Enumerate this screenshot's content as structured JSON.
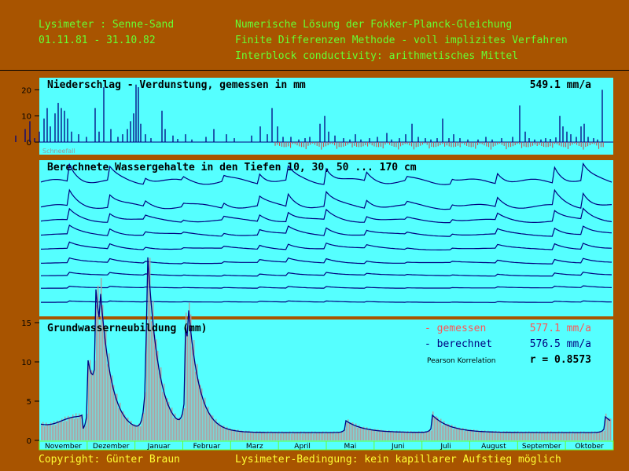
{
  "header": {
    "left_line1": "Lysimeter : Senne-Sand",
    "left_line2": "01.11.81 - 31.10.82",
    "right_line1": "Numerische Lösung der Fokker-Planck-Gleichung",
    "right_line2": "Finite Differenzen Methode - voll implizites Verfahren",
    "right_line3": "Interblock conductivity: arithmetisches Mittel"
  },
  "footer": {
    "copyright": "Copyright: Günter Braun",
    "condition": "Lysimeter-Bedingung: kein kapillarer Aufstieg möglich"
  },
  "colors": {
    "background": "#a85400",
    "plot_bg": "#55ffff",
    "header_text": "#66ff33",
    "footer_text": "#ffff33",
    "measured": "#ff5555",
    "computed": "#000080",
    "line": "#000080"
  },
  "chart_data": [
    {
      "type": "bar",
      "title": "Niederschlag - Verdunstung, gemessen in mm",
      "total_label": "549.1 mm/a",
      "note": "Schneefall",
      "yticks": [
        0,
        10,
        20
      ],
      "ylim": [
        -3,
        25
      ],
      "spikes": [
        [
          20,
          2.5
        ],
        [
          32,
          5
        ],
        [
          38,
          8
        ],
        [
          44,
          1.5
        ],
        [
          50,
          4
        ],
        [
          56,
          9
        ],
        [
          60,
          13
        ],
        [
          64,
          6
        ],
        [
          70,
          11
        ],
        [
          74,
          15
        ],
        [
          78,
          13
        ],
        [
          82,
          12
        ],
        [
          86,
          9
        ],
        [
          91,
          4
        ],
        [
          100,
          3
        ],
        [
          110,
          2
        ],
        [
          121,
          13
        ],
        [
          126,
          4
        ],
        [
          132,
          21
        ],
        [
          141,
          5
        ],
        [
          150,
          2
        ],
        [
          156,
          3
        ],
        [
          162,
          5
        ],
        [
          166,
          8
        ],
        [
          170,
          11
        ],
        [
          173,
          22
        ],
        [
          176,
          21
        ],
        [
          179,
          7
        ],
        [
          185,
          3
        ],
        [
          192,
          1.5
        ],
        [
          206,
          12
        ],
        [
          210,
          5
        ],
        [
          220,
          2.5
        ],
        [
          226,
          1.2
        ],
        [
          236,
          3
        ],
        [
          244,
          1
        ],
        [
          262,
          2
        ],
        [
          272,
          5
        ],
        [
          288,
          3
        ],
        [
          298,
          1.5
        ],
        [
          320,
          2.5
        ],
        [
          331,
          6
        ],
        [
          340,
          3
        ],
        [
          346,
          13
        ],
        [
          353,
          6
        ],
        [
          360,
          2
        ],
        [
          370,
          2
        ],
        [
          380,
          1
        ],
        [
          388,
          1.5
        ],
        [
          394,
          2
        ],
        [
          407,
          7
        ],
        [
          413,
          10
        ],
        [
          418,
          4
        ],
        [
          426,
          2.5
        ],
        [
          437,
          1.5
        ],
        [
          445,
          1
        ],
        [
          452,
          3
        ],
        [
          459,
          1
        ],
        [
          470,
          1.5
        ],
        [
          480,
          2
        ],
        [
          492,
          3.5
        ],
        [
          498,
          1
        ],
        [
          508,
          1.5
        ],
        [
          516,
          3
        ],
        [
          524,
          7
        ],
        [
          532,
          2
        ],
        [
          541,
          1.5
        ],
        [
          548,
          1
        ],
        [
          556,
          1.5
        ],
        [
          563,
          9
        ],
        [
          571,
          1.5
        ],
        [
          577,
          3
        ],
        [
          585,
          1.5
        ],
        [
          595,
          1
        ],
        [
          608,
          1
        ],
        [
          618,
          2
        ],
        [
          626,
          1
        ],
        [
          638,
          1.5
        ],
        [
          652,
          2
        ],
        [
          661,
          14
        ],
        [
          668,
          4
        ],
        [
          673,
          1.5
        ],
        [
          680,
          1
        ],
        [
          688,
          1
        ],
        [
          694,
          1.5
        ],
        [
          700,
          1.2
        ],
        [
          707,
          1.8
        ],
        [
          712,
          10
        ],
        [
          716,
          6
        ],
        [
          721,
          4
        ],
        [
          726,
          3
        ],
        [
          733,
          2
        ],
        [
          739,
          6
        ],
        [
          743,
          7
        ],
        [
          748,
          2
        ],
        [
          755,
          1.5
        ],
        [
          760,
          1
        ],
        [
          766,
          20
        ]
      ]
    },
    {
      "type": "line",
      "title": "Berechnete Wassergehalte in den Tiefen 10, 30, 50 ... 170 cm",
      "depths_cm": [
        10,
        30,
        50,
        70,
        90,
        110,
        130,
        150,
        170
      ],
      "series": [
        {
          "base": 46,
          "amp": 11,
          "sharp": 1.0
        },
        {
          "base": 30,
          "amp": 10,
          "sharp": 0.85
        },
        {
          "base": 21,
          "amp": 7,
          "sharp": 0.7
        },
        {
          "base": 12,
          "amp": 5.5,
          "sharp": 0.55
        },
        {
          "base": 3,
          "amp": 4,
          "sharp": 0.42
        },
        {
          "base": -6,
          "amp": 3,
          "sharp": 0.32
        },
        {
          "base": -14,
          "amp": 2,
          "sharp": 0.22
        },
        {
          "base": -22,
          "amp": 1.2,
          "sharp": 0.15
        },
        {
          "base": -31,
          "amp": 0.8,
          "sharp": 0.1
        }
      ],
      "ylim": [
        -40,
        60
      ]
    },
    {
      "type": "bar",
      "title": "Grundwasserneubildung (mm)",
      "yticks": [
        0,
        5,
        10,
        15
      ],
      "ylim": [
        0,
        15
      ],
      "legend": [
        {
          "label": "- gemessen",
          "value": "577.1 mm/a",
          "color": "#ff5555"
        },
        {
          "label": "- berechnet",
          "value": "576.5 mm/a",
          "color": "#000080"
        }
      ],
      "correlation_label": "Pearson Korrelation",
      "correlation_value": "r =  0.8573",
      "months": [
        "November",
        "Dezember",
        "Januar",
        "Februar",
        "Marz",
        "April",
        "Mai",
        "Juni",
        "Juli",
        "August",
        "September",
        "Oktober"
      ]
    }
  ]
}
